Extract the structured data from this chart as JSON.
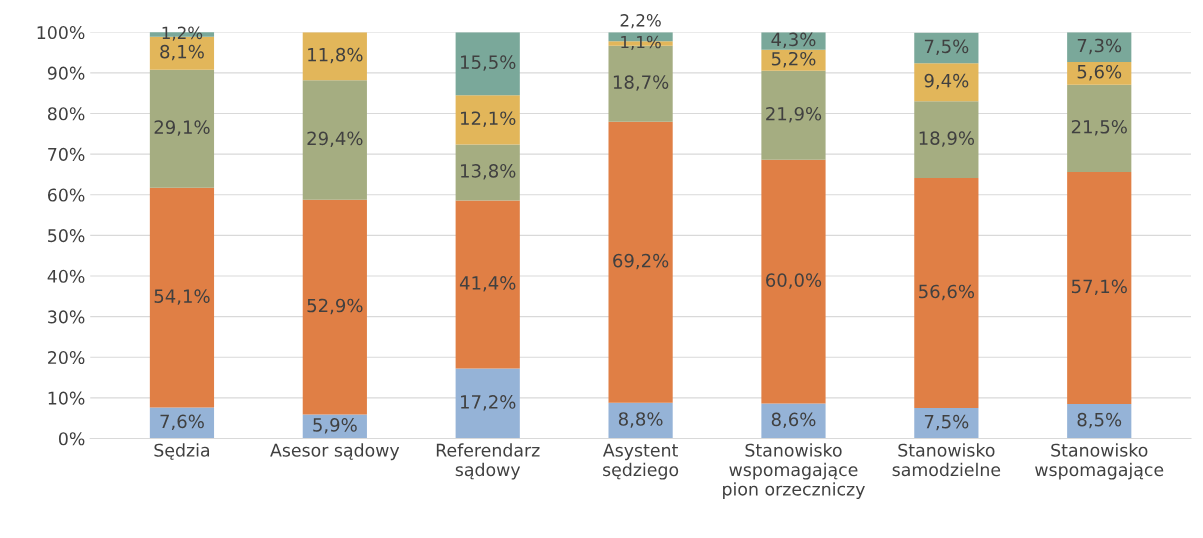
{
  "chart_data": {
    "type": "bar",
    "stacked": true,
    "categories": [
      "Sędzia",
      "Asesor sądowy",
      "Referendarz\nsądowy",
      "Asystent\nsędziego",
      "Stanowisko\nwspomagające\npion orzeczniczy",
      "Stanowisko\nsamodzielne",
      "Stanowisko\nwspomagające"
    ],
    "series": [
      {
        "color": "#95b3d7",
        "values": [
          7.6,
          5.9,
          17.2,
          8.8,
          8.6,
          7.5,
          8.5
        ],
        "value_labels": [
          "7,6%",
          "5,9%",
          "17,2%",
          "8,8%",
          "8,6%",
          "7,5%",
          "8,5%"
        ]
      },
      {
        "color": "#e07f45",
        "values": [
          54.1,
          52.9,
          41.4,
          69.2,
          60.0,
          56.6,
          57.1
        ],
        "value_labels": [
          "54,1%",
          "52,9%",
          "41,4%",
          "69,2%",
          "60,0%",
          "56,6%",
          "57,1%"
        ]
      },
      {
        "color": "#a5ad81",
        "values": [
          29.1,
          29.4,
          13.8,
          18.7,
          21.9,
          18.9,
          21.5
        ],
        "value_labels": [
          "29,1%",
          "29,4%",
          "13,8%",
          "18,7%",
          "21,9%",
          "18,9%",
          "21,5%"
        ]
      },
      {
        "color": "#e2b65a",
        "values": [
          8.1,
          11.8,
          12.1,
          1.1,
          5.2,
          9.4,
          5.6
        ],
        "value_labels": [
          "8,1%",
          "11,8%",
          "12,1%",
          "1,1%",
          "5,2%",
          "9,4%",
          "5,6%"
        ]
      },
      {
        "color": "#7aa89a",
        "values": [
          1.2,
          null,
          15.5,
          2.2,
          4.3,
          7.5,
          7.3
        ],
        "value_labels": [
          "1,2%",
          null,
          "15,5%",
          "2,2%",
          "4,3%",
          "7,5%",
          "7,3%"
        ]
      }
    ],
    "ylim": [
      0,
      100
    ],
    "yticks": [
      {
        "value": 0,
        "label": "0%"
      },
      {
        "value": 10,
        "label": "10%"
      },
      {
        "value": 20,
        "label": "20%"
      },
      {
        "value": 30,
        "label": "30%"
      },
      {
        "value": 40,
        "label": "40%"
      },
      {
        "value": 50,
        "label": "50%"
      },
      {
        "value": 60,
        "label": "60%"
      },
      {
        "value": 70,
        "label": "70%"
      },
      {
        "value": 80,
        "label": "80%"
      },
      {
        "value": 90,
        "label": "90%"
      },
      {
        "value": 100,
        "label": "100%"
      }
    ],
    "grid": "y",
    "legend": false
  }
}
